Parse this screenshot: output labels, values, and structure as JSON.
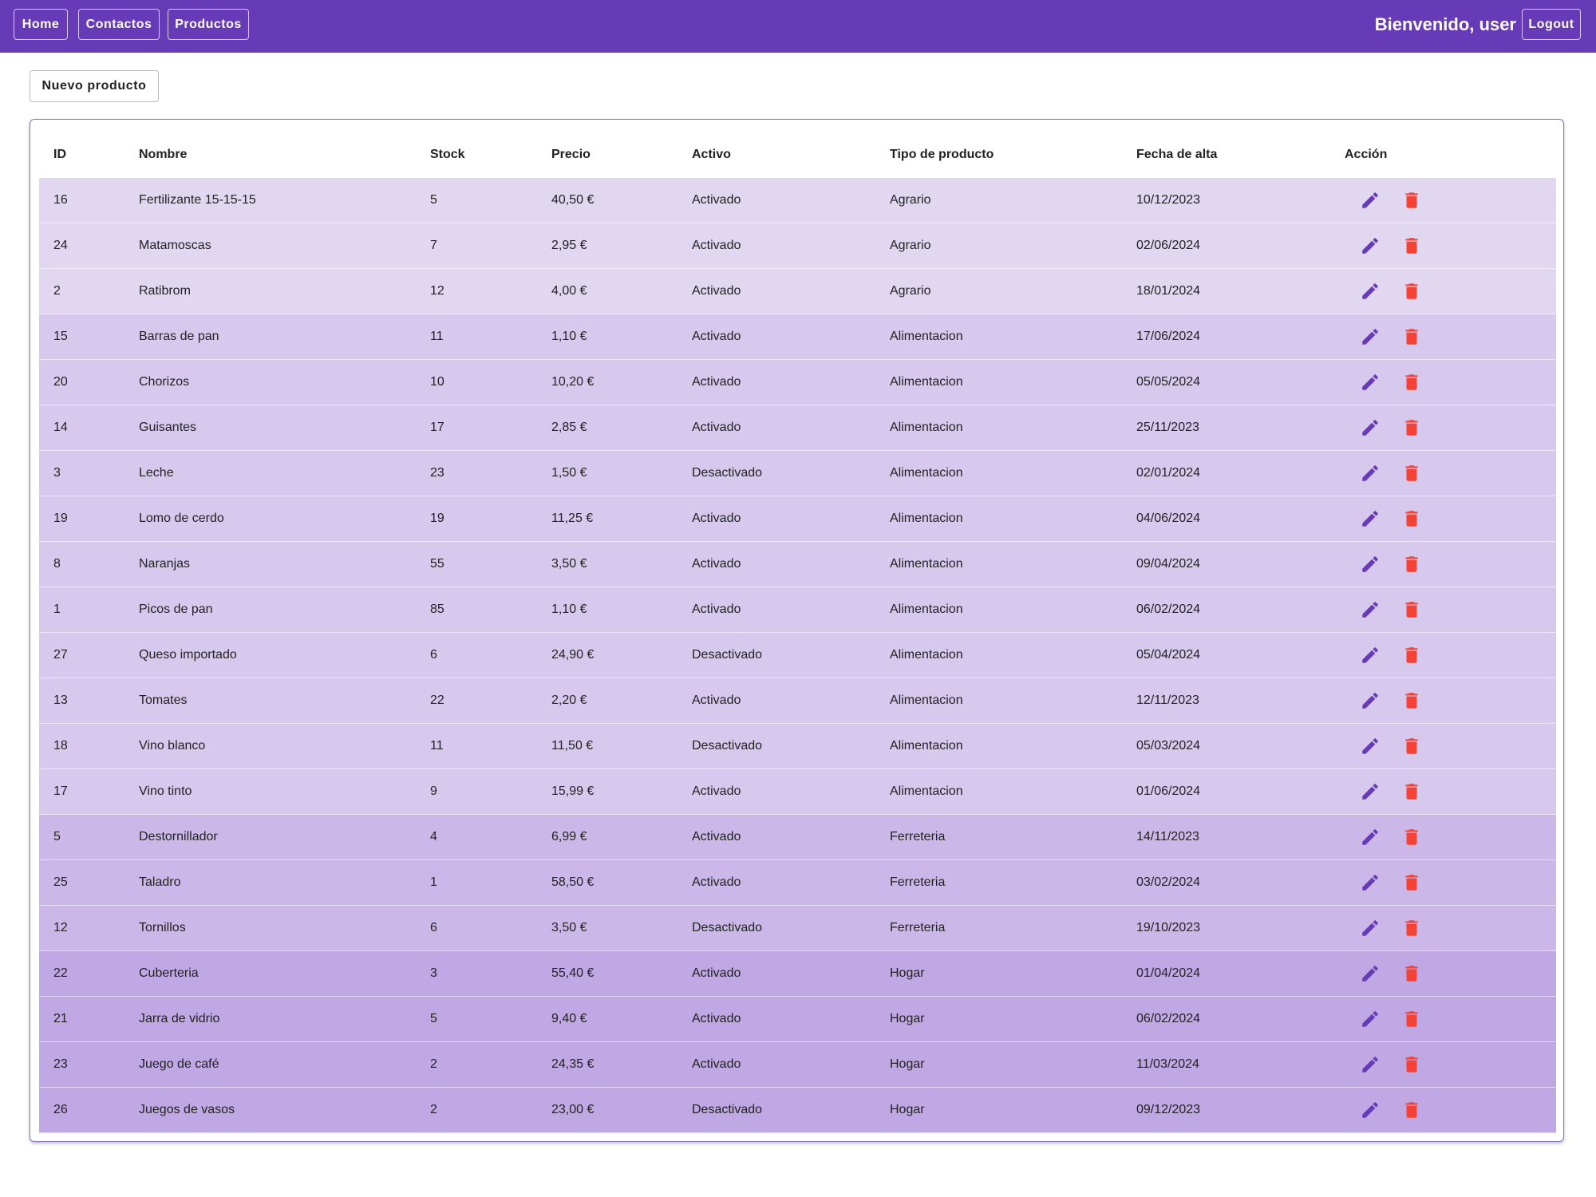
{
  "header": {
    "nav": [
      "Home",
      "Contactos",
      "Productos"
    ],
    "welcome": "Bienvenido, user",
    "logout": "Logout"
  },
  "new_button": "Nuevo producto",
  "table": {
    "columns": [
      "ID",
      "Nombre",
      "Stock",
      "Precio",
      "Activo",
      "Tipo de producto",
      "Fecha de alta",
      "Acción"
    ],
    "rows": [
      [
        "16",
        "Fertilizante 15-15-15",
        "5",
        "40,50 €",
        "Activado",
        "Agrario",
        "10/12/2023"
      ],
      [
        "24",
        "Matamoscas",
        "7",
        "2,95 €",
        "Activado",
        "Agrario",
        "02/06/2024"
      ],
      [
        "2",
        "Ratibrom",
        "12",
        "4,00 €",
        "Activado",
        "Agrario",
        "18/01/2024"
      ],
      [
        "15",
        "Barras de pan",
        "11",
        "1,10 €",
        "Activado",
        "Alimentacion",
        "17/06/2024"
      ],
      [
        "20",
        "Chorizos",
        "10",
        "10,20 €",
        "Activado",
        "Alimentacion",
        "05/05/2024"
      ],
      [
        "14",
        "Guisantes",
        "17",
        "2,85 €",
        "Activado",
        "Alimentacion",
        "25/11/2023"
      ],
      [
        "3",
        "Leche",
        "23",
        "1,50 €",
        "Desactivado",
        "Alimentacion",
        "02/01/2024"
      ],
      [
        "19",
        "Lomo de cerdo",
        "19",
        "11,25 €",
        "Activado",
        "Alimentacion",
        "04/06/2024"
      ],
      [
        "8",
        "Naranjas",
        "55",
        "3,50 €",
        "Activado",
        "Alimentacion",
        "09/04/2024"
      ],
      [
        "1",
        "Picos de pan",
        "85",
        "1,10 €",
        "Activado",
        "Alimentacion",
        "06/02/2024"
      ],
      [
        "27",
        "Queso importado",
        "6",
        "24,90 €",
        "Desactivado",
        "Alimentacion",
        "05/04/2024"
      ],
      [
        "13",
        "Tomates",
        "22",
        "2,20 €",
        "Activado",
        "Alimentacion",
        "12/11/2023"
      ],
      [
        "18",
        "Vino blanco",
        "11",
        "11,50 €",
        "Desactivado",
        "Alimentacion",
        "05/03/2024"
      ],
      [
        "17",
        "Vino tinto",
        "9",
        "15,99 €",
        "Activado",
        "Alimentacion",
        "01/06/2024"
      ],
      [
        "5",
        "Destornillador",
        "4",
        "6,99 €",
        "Activado",
        "Ferreteria",
        "14/11/2023"
      ],
      [
        "25",
        "Taladro",
        "1",
        "58,50 €",
        "Activado",
        "Ferreteria",
        "03/02/2024"
      ],
      [
        "12",
        "Tornillos",
        "6",
        "3,50 €",
        "Desactivado",
        "Ferreteria",
        "19/10/2023"
      ],
      [
        "22",
        "Cuberteria",
        "3",
        "55,40 €",
        "Activado",
        "Hogar",
        "01/04/2024"
      ],
      [
        "21",
        "Jarra de vidrio",
        "5",
        "9,40 €",
        "Activado",
        "Hogar",
        "06/02/2024"
      ],
      [
        "23",
        "Juego de café",
        "2",
        "24,35 €",
        "Activado",
        "Hogar",
        "11/03/2024"
      ],
      [
        "26",
        "Juegos de vasos",
        "2",
        "23,00 €",
        "Desactivado",
        "Hogar",
        "09/12/2023"
      ]
    ]
  }
}
